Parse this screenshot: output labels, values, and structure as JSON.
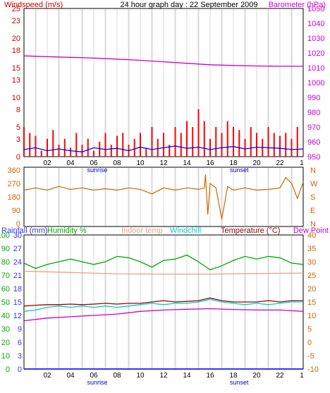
{
  "chart_data": [
    {
      "type": "line",
      "panel": "wind_pressure",
      "title": "24 hour graph day : 22 September 2009",
      "left_axis_label": "Windspeed (m/s)",
      "right_axis_label": "Barometer (hPa)",
      "left_ticks": [
        0,
        3,
        5,
        8,
        10,
        13,
        15,
        18,
        20,
        23,
        25
      ],
      "right_ticks": [
        950,
        960,
        970,
        980,
        990,
        1000,
        1010,
        1020,
        1030,
        1040,
        1050
      ],
      "ylim_left": [
        0,
        25
      ],
      "ylim_right": [
        950,
        1050
      ],
      "x_ticks": [
        "02",
        "04",
        "06",
        "08",
        "10",
        "12",
        "14",
        "16",
        "18",
        "20",
        "22"
      ],
      "x_last_tick": "1",
      "sunrise_label": "sunrise",
      "sunset_label": "sunset",
      "series": [
        {
          "name": "Barometer",
          "axis": "right",
          "color": "#cc00cc",
          "x": [
            0,
            2,
            4,
            6,
            8,
            10,
            12,
            14,
            16,
            18,
            20,
            22,
            24
          ],
          "y": [
            1018,
            1017.5,
            1017,
            1016.5,
            1015.8,
            1015,
            1014,
            1013,
            1012,
            1011.5,
            1011.2,
            1011,
            1011
          ]
        },
        {
          "name": "Wind gust",
          "axis": "left",
          "color": "#ff0000",
          "style": "bars",
          "x": [
            0,
            0.5,
            1,
            1.5,
            2,
            2.5,
            3,
            3.5,
            4,
            4.5,
            5,
            5.5,
            6,
            6.5,
            7,
            7.5,
            8,
            8.5,
            9,
            9.5,
            10,
            10.5,
            11,
            11.5,
            12,
            12.5,
            13,
            13.5,
            14,
            14.5,
            15,
            15.5,
            16,
            16.5,
            17,
            17.5,
            18,
            18.5,
            19,
            19.5,
            20,
            20.5,
            21,
            21.5,
            22,
            22.5,
            23,
            23.5
          ],
          "y": [
            5,
            4,
            3.5,
            1,
            3,
            4.5,
            2,
            3,
            1.5,
            4,
            2,
            3,
            1,
            2.5,
            4,
            2,
            3.5,
            4,
            2,
            3,
            4,
            1.5,
            5,
            3,
            4,
            2,
            5,
            4,
            6,
            5,
            8,
            6,
            3,
            5,
            4,
            6,
            5,
            4.5,
            3,
            5,
            4,
            3,
            5,
            4,
            3.5,
            4,
            3,
            5
          ]
        },
        {
          "name": "Wind speed",
          "axis": "left",
          "color": "#0000ff",
          "x": [
            0,
            1,
            2,
            3,
            4,
            5,
            6,
            7,
            8,
            9,
            10,
            11,
            12,
            13,
            14,
            15,
            16,
            17,
            18,
            19,
            20,
            21,
            22,
            23,
            24
          ],
          "y": [
            1.2,
            1.5,
            1,
            1.3,
            1,
            0.8,
            1.5,
            1.2,
            1.4,
            1,
            1.6,
            1.2,
            1.5,
            1.8,
            1.4,
            1.6,
            1.2,
            1.5,
            1.7,
            1.3,
            1.6,
            1.5,
            1.4,
            1.2,
            1.3
          ]
        }
      ]
    },
    {
      "type": "line",
      "panel": "wind_direction",
      "left_ticks": [
        0,
        90,
        180,
        270,
        360
      ],
      "right_ticks": [
        "N",
        "W",
        "S",
        "E",
        "N"
      ],
      "ylim": [
        0,
        360
      ],
      "series": [
        {
          "name": "Wind direction",
          "color": "#cc6600",
          "x": [
            0,
            1,
            2,
            3,
            4,
            5,
            6,
            7,
            8,
            9,
            10,
            11,
            12,
            13,
            14,
            15,
            15.5,
            15.6,
            15.8,
            16,
            16.5,
            17,
            17.5,
            18,
            19,
            20,
            21,
            22,
            22.5,
            23,
            23.5,
            24
          ],
          "y": [
            225,
            240,
            225,
            250,
            230,
            240,
            225,
            235,
            225,
            240,
            230,
            200,
            240,
            225,
            240,
            230,
            240,
            330,
            60,
            270,
            240,
            30,
            250,
            225,
            240,
            225,
            230,
            240,
            310,
            270,
            170,
            280
          ]
        }
      ]
    },
    {
      "type": "line",
      "panel": "temperature_humidity",
      "legend": [
        "Rainfall (mm)",
        "Humidity %",
        "Indoor temp",
        "Windchill",
        "Temperature (°C)",
        "Dew Point"
      ],
      "left_ticks_rainfall": [
        0,
        3,
        6,
        9,
        12,
        15,
        18,
        21,
        24,
        27,
        30
      ],
      "left_ticks_humidity": [
        0,
        10,
        20,
        30,
        40,
        50,
        60,
        70,
        80,
        90,
        100
      ],
      "right_ticks": [
        -10,
        -5,
        0,
        5,
        10,
        15,
        20,
        25,
        30,
        35,
        40
      ],
      "ylim_right": [
        -10,
        40
      ],
      "series": [
        {
          "name": "Humidity %",
          "axis": "humidity",
          "color": "#00aa00",
          "x": [
            0,
            1,
            2,
            3,
            4,
            5,
            6,
            7,
            8,
            9,
            10,
            11,
            12,
            13,
            14,
            15,
            16,
            17,
            18,
            19,
            20,
            21,
            22,
            23,
            24
          ],
          "y": [
            79,
            75,
            78,
            80,
            82,
            80,
            78,
            80,
            84,
            83,
            80,
            76,
            81,
            82,
            85,
            80,
            74,
            77,
            81,
            84,
            82,
            84,
            83,
            79,
            78
          ]
        },
        {
          "name": "Indoor temp",
          "axis": "right",
          "color": "#f0a080",
          "x": [
            0,
            4,
            8,
            12,
            16,
            20,
            24
          ],
          "y": [
            26.5,
            26,
            25.5,
            25.4,
            25.4,
            25.6,
            25.8
          ]
        },
        {
          "name": "Windchill",
          "axis": "right",
          "color": "#00cccc",
          "x": [
            0,
            1,
            2,
            3,
            4,
            5,
            6,
            7,
            8,
            9,
            10,
            11,
            12,
            13,
            14,
            15,
            16,
            17,
            18,
            19,
            20,
            21,
            22,
            23,
            24
          ],
          "y": [
            11.5,
            12,
            13,
            13.5,
            13,
            13.5,
            13,
            13.5,
            13,
            13.5,
            14,
            14.5,
            14,
            14.5,
            14.5,
            15,
            16,
            15,
            14.5,
            14,
            14.5,
            14,
            14.5,
            15,
            15
          ]
        },
        {
          "name": "Temperature (°C)",
          "axis": "right",
          "color": "#990000",
          "x": [
            0,
            1,
            2,
            3,
            4,
            5,
            6,
            7,
            8,
            9,
            10,
            11,
            12,
            13,
            14,
            15,
            16,
            17,
            18,
            19,
            20,
            21,
            22,
            23,
            24
          ],
          "y": [
            13.5,
            13.8,
            14,
            14,
            14.2,
            14,
            14.2,
            14.5,
            14.2,
            14.5,
            14.5,
            15,
            15.5,
            15,
            15.2,
            15.5,
            16.5,
            15.5,
            15,
            15,
            15,
            15.5,
            15,
            15.5,
            15.5
          ]
        },
        {
          "name": "Dew Point",
          "axis": "right",
          "color": "#cc00cc",
          "x": [
            0,
            2,
            4,
            6,
            8,
            10,
            12,
            14,
            16,
            18,
            20,
            22,
            24
          ],
          "y": [
            8,
            9,
            9.5,
            10,
            10.5,
            11.5,
            12,
            12.3,
            12.5,
            12.2,
            12,
            12,
            11.5
          ]
        },
        {
          "name": "Rainfall (mm)",
          "axis": "rainfall",
          "color": "#3333ff",
          "x": [
            0,
            24
          ],
          "y": [
            0,
            0
          ]
        }
      ]
    }
  ],
  "colors": {
    "grid_vertical": "#d8d8d8",
    "axis": "#000000",
    "wind_label": "#cc0000",
    "barometer_label": "#cc00cc",
    "rainfall_label": "#3333ff",
    "humidity_label": "#00aa00",
    "indoor_label": "#f0a080",
    "windchill_label": "#00cccc",
    "temperature_label": "#990000",
    "dewpoint_label": "#cc00cc",
    "direction_tick": "#cc6600",
    "right_temp_tick": "#cc6600"
  }
}
